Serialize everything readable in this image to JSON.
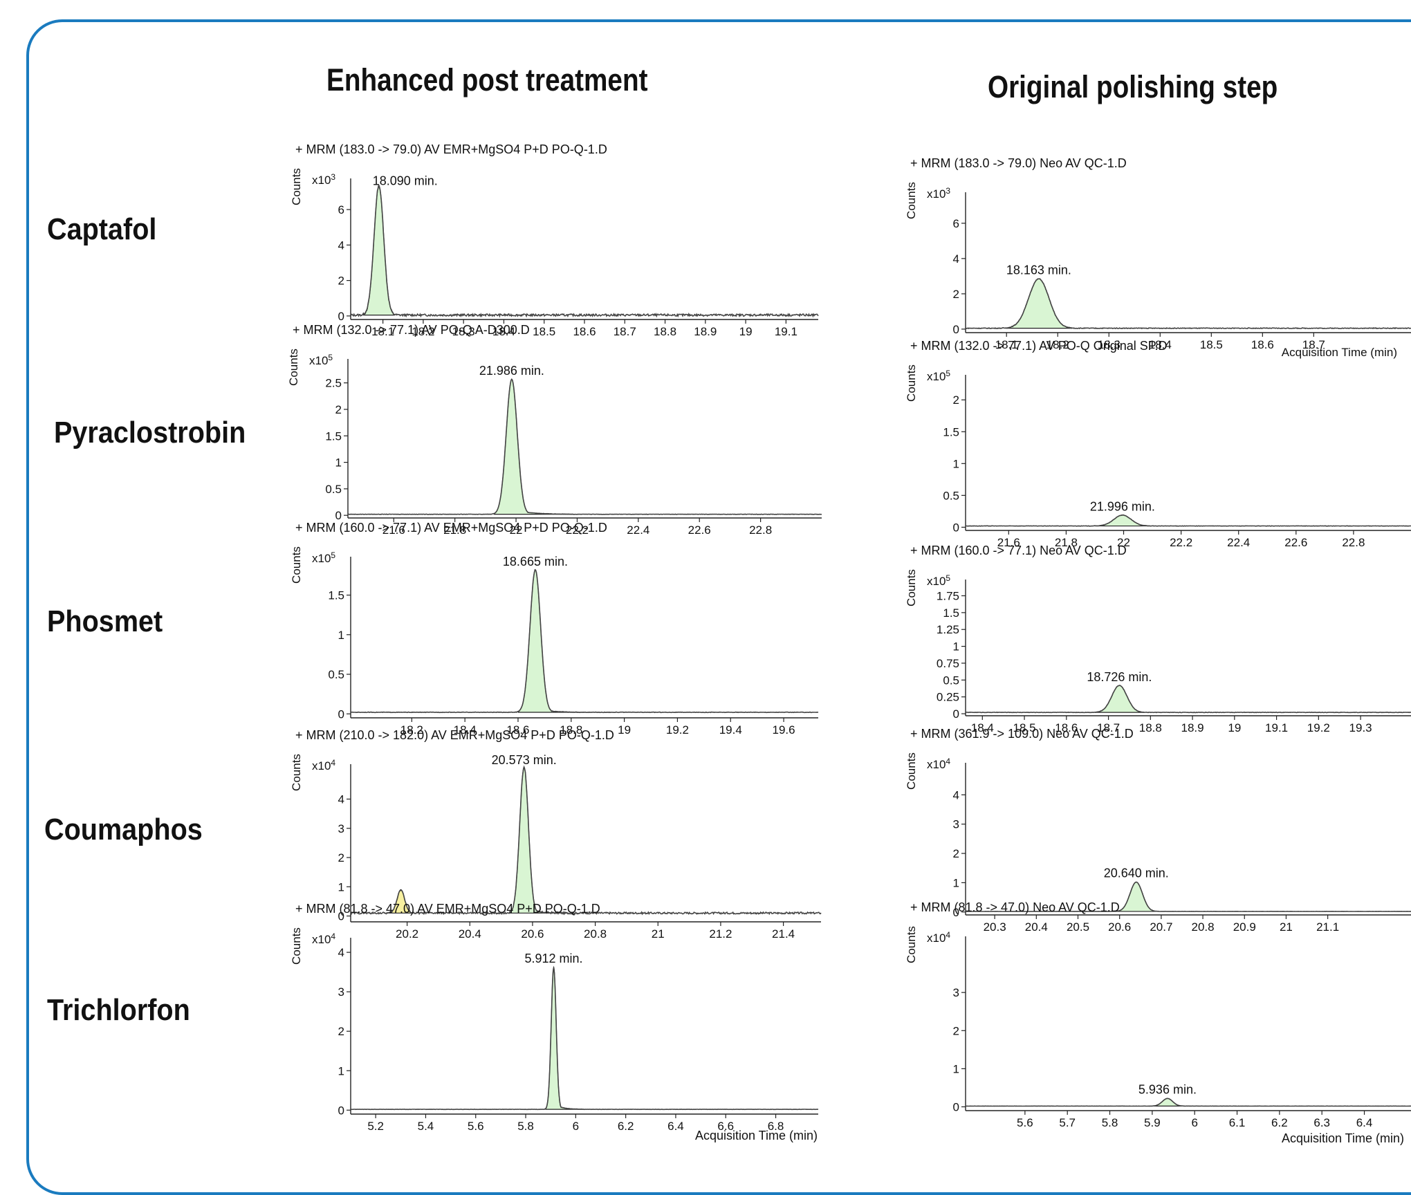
{
  "column_titles": [
    "Enhanced post treatment",
    "Original polishing step"
  ],
  "compounds": [
    "Captafol",
    "Pyraclostrobin",
    "Phosmet",
    "Coumaphos",
    "Trichlorfon"
  ],
  "y_axis_label": "Counts",
  "x_axis_label": "Acquisition Time (min)",
  "colors": {
    "frame": "#1a7bbf",
    "peak_fill": "#d9f5d3",
    "minor_peak_fill": "#f7f0a0",
    "trace": "#444444"
  },
  "chart_data": [
    {
      "type": "line",
      "title": "+ MRM (183.0 -> 79.0) AV EMR+MgSO4 P+D PO-Q-1.D",
      "ylabel": "Counts",
      "multiplier": "x10 3",
      "xlim": [
        18.02,
        19.18
      ],
      "ylim": [
        -0.2,
        7.6
      ],
      "xticks": [
        18.1,
        18.2,
        18.3,
        18.4,
        18.5,
        18.6,
        18.7,
        18.8,
        18.9,
        19,
        19.1
      ],
      "yticks": [
        0,
        2,
        4,
        6
      ],
      "ytick_labels": [
        "0",
        "2",
        "4",
        "6"
      ],
      "peak": {
        "rt": 18.09,
        "height": 7.3,
        "width": 0.012,
        "label": "18.090 min."
      },
      "baseline": 0.05,
      "noise": 0.06
    },
    {
      "type": "line",
      "title": "+ MRM (183.0 -> 79.0) Neo AV QC-1.D",
      "ylabel": "Counts",
      "multiplier": "x10 3",
      "xlim": [
        18.02,
        18.89
      ],
      "ylim": [
        -0.2,
        7.6
      ],
      "xticks": [
        18.1,
        18.2,
        18.3,
        18.4,
        18.5,
        18.6,
        18.7
      ],
      "yticks": [
        0,
        2,
        4,
        6
      ],
      "ytick_labels": [
        "0",
        "2",
        "4",
        "6"
      ],
      "peak": {
        "rt": 18.163,
        "height": 2.8,
        "width": 0.02,
        "label": "18.163 min."
      },
      "baseline": 0.05,
      "noise": 0.02,
      "x_axis_label_clipped": "Acquisition Time (min)"
    },
    {
      "type": "line",
      "title": "+ MRM (132.0 -> 77.1) AV PO-Q A-D300.D",
      "ylabel": "Counts",
      "multiplier": "x10 5",
      "xlim": [
        21.45,
        23.0
      ],
      "ylim": [
        -0.05,
        2.9
      ],
      "xticks": [
        21.6,
        21.8,
        22,
        22.2,
        22.4,
        22.6,
        22.8
      ],
      "yticks": [
        0,
        0.5,
        1,
        1.5,
        2,
        2.5
      ],
      "ytick_labels": [
        "0",
        "0.5",
        "1",
        "1.5",
        "2",
        "2.5"
      ],
      "peak": {
        "rt": 21.986,
        "height": 2.55,
        "width": 0.018,
        "tail": 0.05,
        "label": "21.986 min."
      },
      "baseline": 0.02,
      "noise": 0.003
    },
    {
      "type": "line",
      "title": "+ MRM (132.0 -> 77.1) AV PO-Q Original SP.D",
      "ylabel": "Counts",
      "multiplier": "x10 5",
      "xlim": [
        21.45,
        23.0
      ],
      "ylim": [
        -0.05,
        2.35
      ],
      "xticks": [
        21.6,
        21.8,
        22,
        22.2,
        22.4,
        22.6,
        22.8
      ],
      "yticks": [
        0,
        0.5,
        1,
        1.5,
        2
      ],
      "ytick_labels": [
        "0",
        "0.5",
        "1",
        "1.5",
        "2"
      ],
      "peak": {
        "rt": 21.996,
        "height": 0.17,
        "width": 0.03,
        "label": "21.996 min."
      },
      "baseline": 0.02,
      "noise": 0.003
    },
    {
      "type": "line",
      "title": "+ MRM (160.0 -> 77.1) AV EMR+MgSO4 P+D PO-Q-1.D",
      "ylabel": "Counts",
      "multiplier": "x10 5",
      "xlim": [
        17.97,
        19.73
      ],
      "ylim": [
        -0.05,
        1.95
      ],
      "xticks": [
        18.2,
        18.4,
        18.6,
        18.8,
        19,
        19.2,
        19.4,
        19.6
      ],
      "yticks": [
        0,
        0.5,
        1,
        1.5
      ],
      "ytick_labels": [
        "0",
        "0.5",
        "1",
        "1.5"
      ],
      "peak": {
        "rt": 18.665,
        "height": 1.8,
        "width": 0.02,
        "tail": 0.04,
        "label": "18.665 min."
      },
      "baseline": 0.02,
      "noise": 0.003
    },
    {
      "type": "line",
      "title": "+ MRM (160.0 -> 77.1) Neo AV QC-1.D",
      "ylabel": "Counts",
      "multiplier": "x10 5",
      "xlim": [
        18.36,
        19.42
      ],
      "ylim": [
        -0.03,
        1.95
      ],
      "xticks": [
        18.4,
        18.5,
        18.6,
        18.7,
        18.8,
        18.9,
        19,
        19.1,
        19.2,
        19.3
      ],
      "yticks": [
        0,
        0.25,
        0.5,
        0.75,
        1,
        1.25,
        1.5,
        1.75
      ],
      "ytick_labels": [
        "0",
        "0.25",
        "0.5",
        "0.75",
        "1",
        "1.25",
        "1.5",
        "1.75"
      ],
      "peak": {
        "rt": 18.726,
        "height": 0.4,
        "width": 0.018,
        "label": "18.726 min."
      },
      "baseline": 0.02,
      "noise": 0.003
    },
    {
      "type": "line",
      "title": "+ MRM (210.0 -> 182.0) AV EMR+MgSO4 P+D PO-Q-1.D",
      "ylabel": "Counts",
      "multiplier": "x10 4",
      "xlim": [
        20.02,
        21.52
      ],
      "ylim": [
        -0.2,
        5.1
      ],
      "xticks": [
        20.2,
        20.4,
        20.6,
        20.8,
        21,
        21.2,
        21.4
      ],
      "yticks": [
        0,
        1,
        2,
        3,
        4
      ],
      "ytick_labels": [
        "0",
        "1",
        "2",
        "3",
        "4"
      ],
      "peak": {
        "rt": 20.573,
        "height": 5.0,
        "width": 0.014,
        "tail": 0.03,
        "label": "20.573 min."
      },
      "minor_peak": {
        "rt": 20.18,
        "height": 0.8,
        "width": 0.012
      },
      "baseline": 0.1,
      "noise": 0.03
    },
    {
      "type": "line",
      "title": "+ MRM (361.9 -> 109.0) Neo AV QC-1.D",
      "ylabel": "Counts",
      "multiplier": "x10 4",
      "xlim": [
        20.23,
        21.3
      ],
      "ylim": [
        -0.1,
        5.0
      ],
      "xticks": [
        20.3,
        20.4,
        20.5,
        20.6,
        20.7,
        20.8,
        20.9,
        21,
        21.1
      ],
      "yticks": [
        0,
        1,
        2,
        3,
        4
      ],
      "ytick_labels": [
        "0",
        "1",
        "2",
        "3",
        "4"
      ],
      "peak": {
        "rt": 20.64,
        "height": 1.0,
        "width": 0.015,
        "label": "20.640 min."
      },
      "baseline": 0.02,
      "noise": 0.003
    },
    {
      "type": "line",
      "title": "+ MRM (81.8 -> 47.0) AV EMR+MgSO4 P+D PO-Q-1.D",
      "ylabel": "Counts",
      "multiplier": "x10 4",
      "xlim": [
        5.1,
        6.97
      ],
      "ylim": [
        -0.1,
        4.3
      ],
      "xticks": [
        5.2,
        5.4,
        5.6,
        5.8,
        6,
        6.2,
        6.4,
        6.6,
        6.8
      ],
      "yticks": [
        0,
        1,
        2,
        3,
        4
      ],
      "ytick_labels": [
        "0",
        "1",
        "2",
        "3",
        "4"
      ],
      "peak": {
        "rt": 5.912,
        "height": 3.6,
        "width": 0.01,
        "tail": 0.03,
        "label": "5.912 min."
      },
      "baseline": 0.02,
      "noise": 0.003
    },
    {
      "type": "line",
      "title": "+ MRM (81.8 -> 47.0) Neo AV QC-1.D",
      "ylabel": "Counts",
      "multiplier": "x10 4",
      "xlim": [
        5.46,
        6.51
      ],
      "ylim": [
        -0.1,
        4.4
      ],
      "xticks": [
        5.6,
        5.7,
        5.8,
        5.9,
        6,
        6.1,
        6.2,
        6.3,
        6.4
      ],
      "yticks": [
        0,
        1,
        2,
        3
      ],
      "ytick_labels": [
        "0",
        "1",
        "2",
        "3"
      ],
      "peak": {
        "rt": 5.936,
        "height": 0.2,
        "width": 0.012,
        "label": "5.936 min."
      },
      "baseline": 0.02,
      "noise": 0.002,
      "x_axis_label": "Acquisition Time (min)"
    }
  ]
}
